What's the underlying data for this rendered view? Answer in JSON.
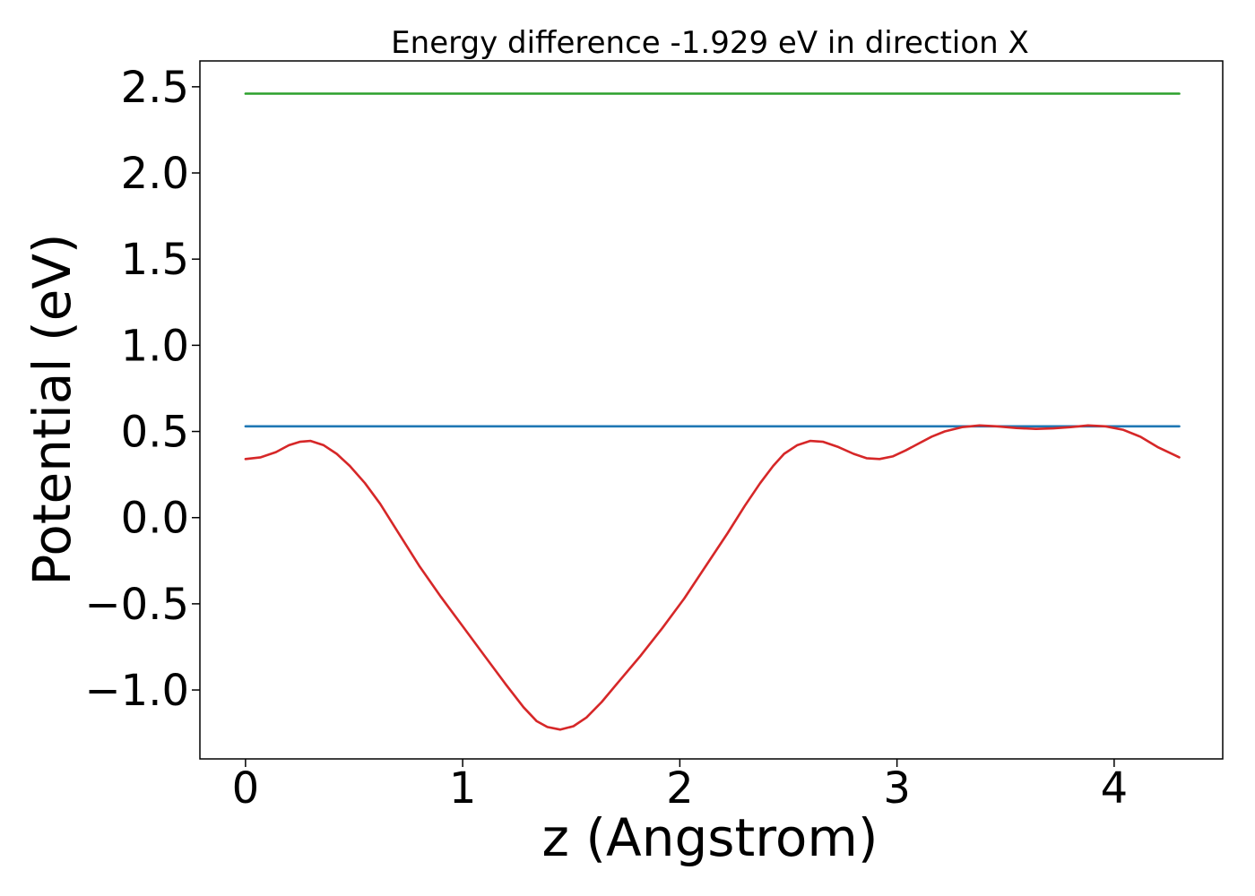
{
  "chart_data": {
    "type": "line",
    "title": "Energy difference -1.929 eV in direction X",
    "xlabel": "z (Angstrom)",
    "ylabel": "Potential (eV)",
    "xlim": [
      -0.21,
      4.5
    ],
    "ylim": [
      -1.4,
      2.65
    ],
    "x_ticks": [
      {
        "value": 0,
        "label": "0"
      },
      {
        "value": 1,
        "label": "1"
      },
      {
        "value": 2,
        "label": "2"
      },
      {
        "value": 3,
        "label": "3"
      },
      {
        "value": 4,
        "label": "4"
      }
    ],
    "y_ticks": [
      {
        "value": 2.5,
        "label": "2.5"
      },
      {
        "value": 2.0,
        "label": "2.0"
      },
      {
        "value": 1.5,
        "label": "1.5"
      },
      {
        "value": 1.0,
        "label": "1.0"
      },
      {
        "value": 0.5,
        "label": "0.5"
      },
      {
        "value": 0.0,
        "label": "0.0"
      },
      {
        "value": -0.5,
        "label": "−0.5"
      },
      {
        "value": -1.0,
        "label": "−1.0"
      }
    ],
    "grid": false,
    "legend": "none",
    "series": [
      {
        "color": "#2ca02c",
        "x": [
          0,
          4.3
        ],
        "y": [
          2.46,
          2.46
        ]
      },
      {
        "color": "#1f77b4",
        "x": [
          0,
          4.3
        ],
        "y": [
          0.53,
          0.53
        ]
      },
      {
        "color": "#d62728",
        "x": [
          0,
          0.07,
          0.14,
          0.2,
          0.25,
          0.3,
          0.36,
          0.42,
          0.48,
          0.55,
          0.62,
          0.7,
          0.8,
          0.9,
          1.0,
          1.1,
          1.2,
          1.28,
          1.34,
          1.39,
          1.45,
          1.51,
          1.57,
          1.64,
          1.72,
          1.82,
          1.92,
          2.02,
          2.12,
          2.22,
          2.3,
          2.37,
          2.43,
          2.48,
          2.54,
          2.6,
          2.66,
          2.73,
          2.8,
          2.86,
          2.92,
          2.98,
          3.04,
          3.1,
          3.16,
          3.22,
          3.3,
          3.38,
          3.46,
          3.55,
          3.64,
          3.72,
          3.8,
          3.88,
          3.96,
          4.04,
          4.12,
          4.2,
          4.3
        ],
        "y": [
          0.34,
          0.35,
          0.38,
          0.42,
          0.44,
          0.445,
          0.42,
          0.37,
          0.3,
          0.2,
          0.08,
          -0.08,
          -0.28,
          -0.46,
          -0.63,
          -0.8,
          -0.97,
          -1.1,
          -1.18,
          -1.215,
          -1.23,
          -1.21,
          -1.16,
          -1.07,
          -0.95,
          -0.8,
          -0.64,
          -0.47,
          -0.28,
          -0.09,
          0.07,
          0.2,
          0.3,
          0.37,
          0.42,
          0.445,
          0.44,
          0.41,
          0.37,
          0.345,
          0.34,
          0.355,
          0.39,
          0.43,
          0.47,
          0.5,
          0.525,
          0.535,
          0.53,
          0.52,
          0.515,
          0.518,
          0.525,
          0.535,
          0.53,
          0.51,
          0.47,
          0.41,
          0.35
        ]
      }
    ]
  }
}
